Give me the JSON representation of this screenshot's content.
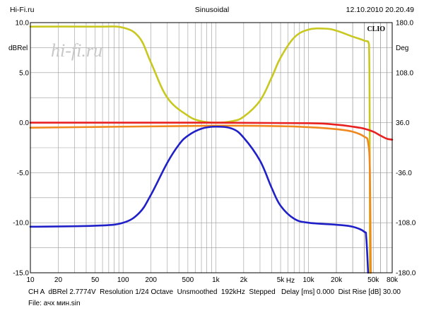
{
  "header": {
    "left": "Hi-Fi.ru",
    "center": "Sinusoidal",
    "right": "12.10.2010 20.20.49"
  },
  "footer": {
    "line1": "CH A  dBRel 2.7774V  Resolution 1/24 Octave  Unsmoothed  192kHz  Stepped   Delay [ms] 0.000  Dist Rise [dB] 30.00",
    "line2": "File: ачх мин.sin"
  },
  "watermark": {
    "text": "hi-fi.ru",
    "color": "#c8c8c8"
  },
  "logo": {
    "text": "CLIO"
  },
  "chart_data": {
    "type": "line",
    "xscale": "log",
    "xlim": [
      10,
      80000
    ],
    "ylim": [
      -15,
      10
    ],
    "y2lim": [
      -180,
      180
    ],
    "ylabel": "dBRel",
    "y2label": "Deg",
    "xlabel": "Hz",
    "grid": true,
    "x_ticks": [
      {
        "v": 10,
        "label": "10"
      },
      {
        "v": 20,
        "label": "20"
      },
      {
        "v": 50,
        "label": "50"
      },
      {
        "v": 100,
        "label": "100"
      },
      {
        "v": 200,
        "label": "200"
      },
      {
        "v": 500,
        "label": "500"
      },
      {
        "v": 1000,
        "label": "1k"
      },
      {
        "v": 2000,
        "label": "2k"
      },
      {
        "v": 5000,
        "label": "5k"
      },
      {
        "v": 10000,
        "label": "10k"
      },
      {
        "v": 20000,
        "label": "20k"
      },
      {
        "v": 50000,
        "label": "50k"
      },
      {
        "v": 80000,
        "label": "80k"
      }
    ],
    "y_ticks": [
      {
        "v": 10,
        "label": "10.0"
      },
      {
        "v": 5,
        "label": "5.0"
      },
      {
        "v": 0,
        "label": "0.0"
      },
      {
        "v": -5,
        "label": "-5.0"
      },
      {
        "v": -10,
        "label": "-10.0"
      },
      {
        "v": -15,
        "label": "-15.0"
      }
    ],
    "y2_ticks": [
      {
        "v": 180,
        "label": "180.0"
      },
      {
        "v": 108,
        "label": "108.0"
      },
      {
        "v": 36,
        "label": "36.0"
      },
      {
        "v": -36,
        "label": "-36.0"
      },
      {
        "v": -108,
        "label": "-108.0"
      },
      {
        "v": -180,
        "label": "-180.0"
      }
    ],
    "series": [
      {
        "color": "#c8c820",
        "points": [
          [
            10,
            9.6
          ],
          [
            50,
            9.6
          ],
          [
            100,
            9.5
          ],
          [
            150,
            8.5
          ],
          [
            200,
            6.0
          ],
          [
            300,
            2.5
          ],
          [
            500,
            0.7
          ],
          [
            700,
            0.15
          ],
          [
            1000,
            0.0
          ],
          [
            1500,
            0.15
          ],
          [
            2000,
            0.6
          ],
          [
            3000,
            2.2
          ],
          [
            4000,
            4.5
          ],
          [
            5000,
            6.5
          ],
          [
            7000,
            8.5
          ],
          [
            10000,
            9.3
          ],
          [
            15000,
            9.4
          ],
          [
            20000,
            9.2
          ],
          [
            30000,
            8.6
          ],
          [
            40000,
            8.2
          ],
          [
            45000,
            7.8
          ],
          [
            46000,
            -15
          ]
        ]
      },
      {
        "color": "#e82020",
        "points": [
          [
            10,
            0.0
          ],
          [
            1000,
            0.0
          ],
          [
            10000,
            -0.05
          ],
          [
            20000,
            -0.2
          ],
          [
            30000,
            -0.4
          ],
          [
            40000,
            -0.6
          ],
          [
            50000,
            -0.9
          ],
          [
            60000,
            -1.3
          ],
          [
            70000,
            -1.6
          ],
          [
            80000,
            -1.7
          ]
        ]
      },
      {
        "color": "#f08820",
        "points": [
          [
            10,
            -0.5
          ],
          [
            100,
            -0.4
          ],
          [
            1000,
            -0.3
          ],
          [
            5000,
            -0.35
          ],
          [
            10000,
            -0.45
          ],
          [
            20000,
            -0.65
          ],
          [
            30000,
            -0.9
          ],
          [
            40000,
            -1.4
          ],
          [
            44000,
            -2.0
          ],
          [
            46000,
            -5
          ],
          [
            47000,
            -15
          ]
        ]
      },
      {
        "color": "#2020c8",
        "points": [
          [
            10,
            -10.4
          ],
          [
            50,
            -10.3
          ],
          [
            100,
            -10.0
          ],
          [
            150,
            -9.0
          ],
          [
            200,
            -7.2
          ],
          [
            300,
            -4.0
          ],
          [
            400,
            -2.2
          ],
          [
            500,
            -1.3
          ],
          [
            700,
            -0.6
          ],
          [
            1000,
            -0.4
          ],
          [
            1500,
            -0.6
          ],
          [
            2000,
            -1.5
          ],
          [
            3000,
            -3.8
          ],
          [
            4000,
            -6.5
          ],
          [
            5000,
            -8.3
          ],
          [
            7000,
            -9.6
          ],
          [
            10000,
            -10.0
          ],
          [
            20000,
            -10.2
          ],
          [
            30000,
            -10.4
          ],
          [
            40000,
            -10.9
          ],
          [
            42000,
            -11.5
          ],
          [
            44000,
            -15
          ]
        ]
      }
    ]
  }
}
